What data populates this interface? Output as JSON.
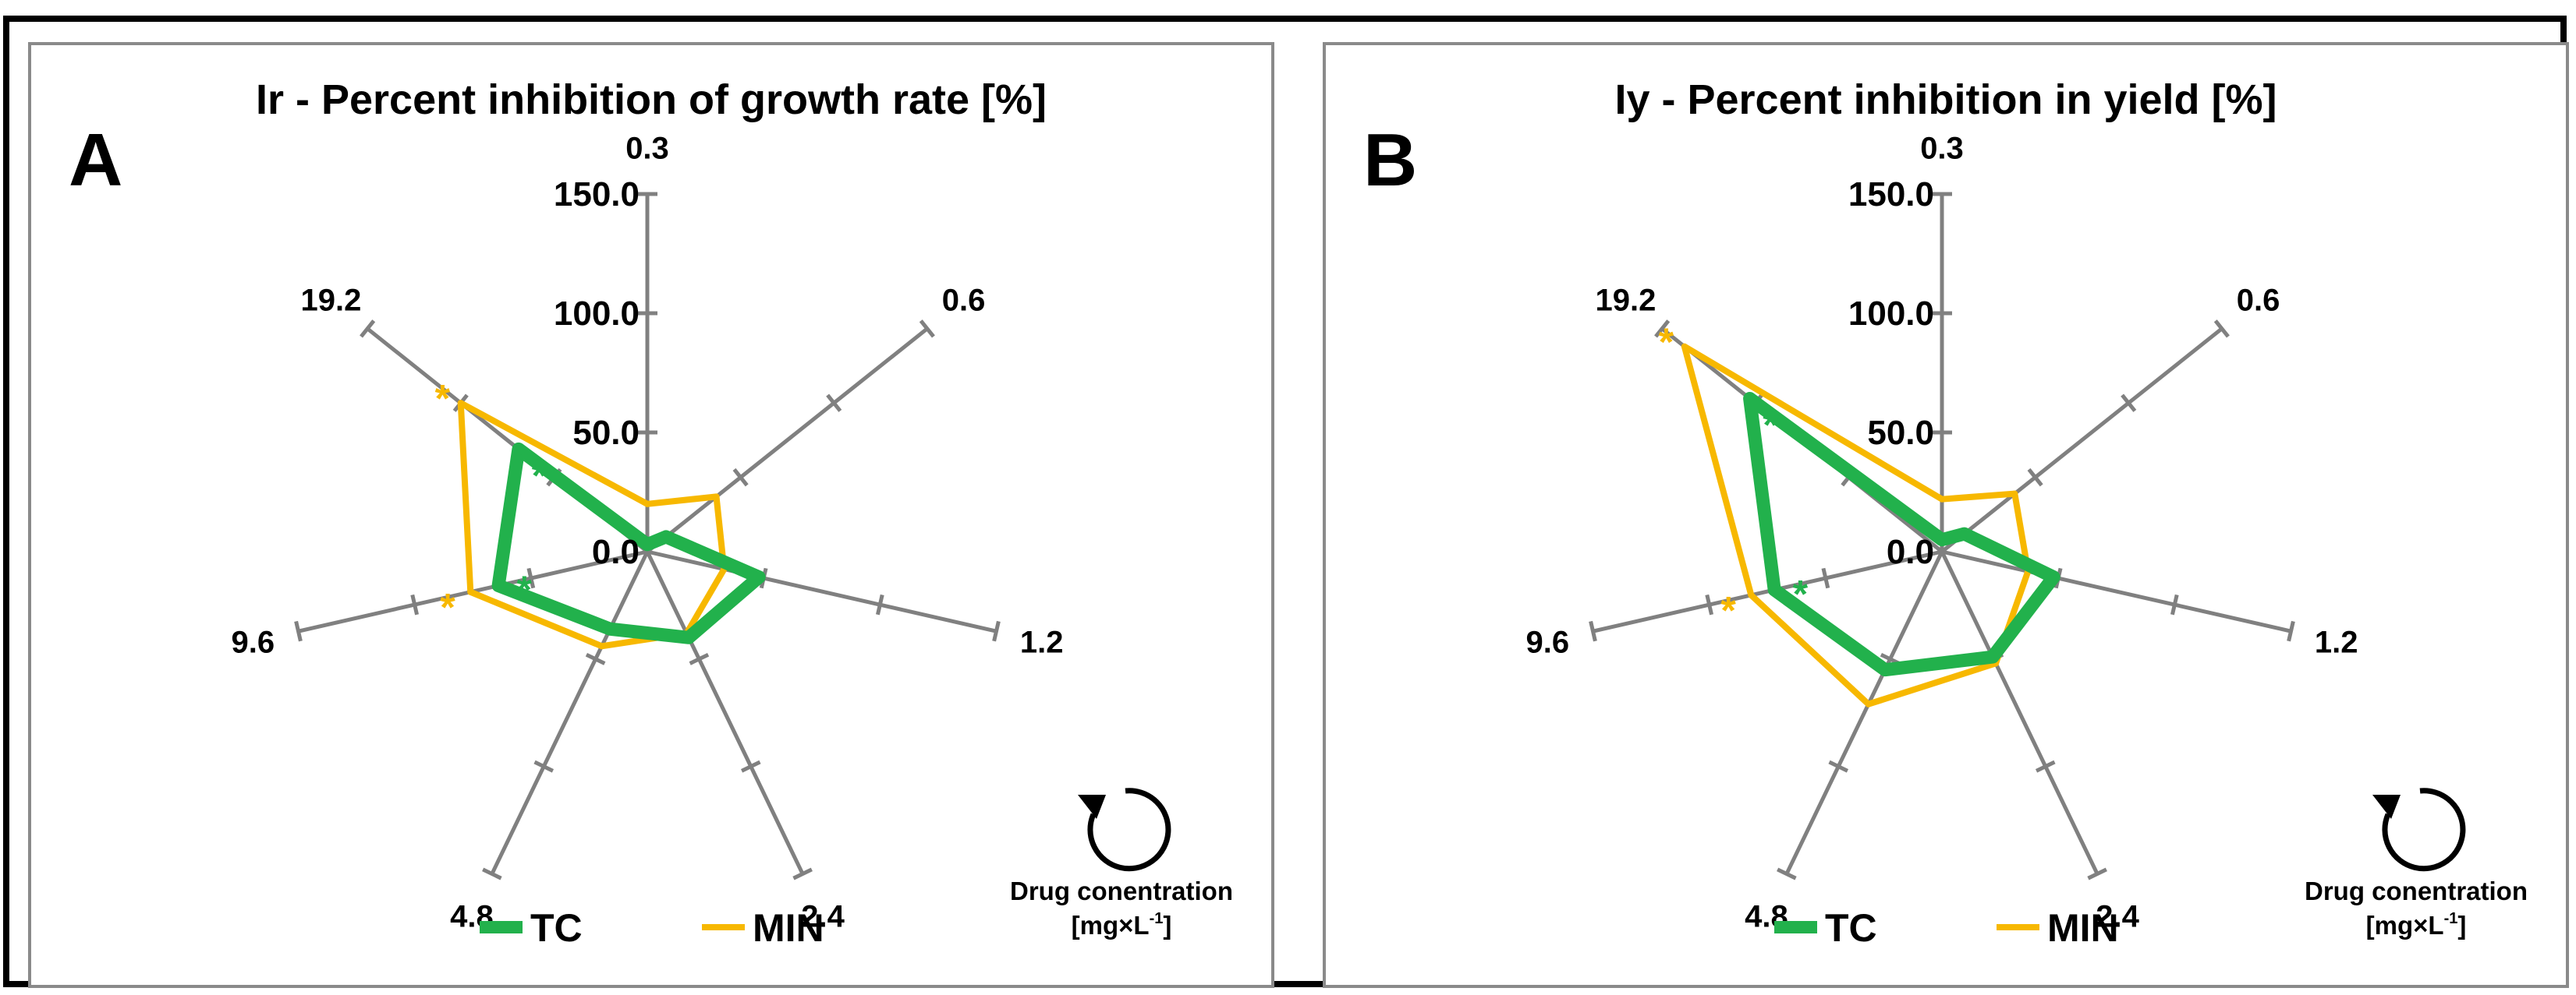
{
  "colors": {
    "tc": "#22b14c",
    "min": "#f7b800",
    "axis": "#808080",
    "text": "#000000"
  },
  "icons": {
    "rotation": "clockwise-rotation-icon"
  },
  "chart_data": [
    {
      "type": "radar",
      "panel": "A",
      "title": "Ir - Percent inhibition of growth rate [%]",
      "categories": [
        "0.3",
        "0.6",
        "1.2",
        "2.4",
        "4.8",
        "9.6",
        "19.2"
      ],
      "rlim": [
        0,
        150
      ],
      "rticks": [
        "0.0",
        "50.0",
        "100.0",
        "150.0"
      ],
      "series": [
        {
          "name": "TC",
          "values": [
            3,
            10,
            48,
            40,
            36,
            64,
            69
          ]
        },
        {
          "name": "MIN",
          "values": [
            20,
            37,
            33,
            38,
            44,
            76,
            100
          ]
        }
      ],
      "significance": [
        {
          "series": "MIN",
          "category": "19.2",
          "text": "*"
        },
        {
          "series": "TC",
          "category": "19.2",
          "text": "*"
        },
        {
          "series": "TC",
          "category": "9.6",
          "text": "*"
        },
        {
          "series": "MIN",
          "category": "9.6",
          "text": "*"
        }
      ],
      "legend": {
        "position": "bottom",
        "labels": [
          "TC",
          "MIN"
        ]
      },
      "note": {
        "line1": "Drug conentration",
        "line2_prefix": "[mg×L",
        "line2_sup": "-1",
        "line2_suffix": "]"
      }
    },
    {
      "type": "radar",
      "panel": "B",
      "title": "Iy - Percent inhibition in yield [%]",
      "categories": [
        "0.3",
        "0.6",
        "1.2",
        "2.4",
        "4.8",
        "9.6",
        "19.2"
      ],
      "rlim": [
        0,
        150
      ],
      "rticks": [
        "0.0",
        "50.0",
        "100.0",
        "150.0"
      ],
      "series": [
        {
          "name": "TC",
          "values": [
            5,
            12,
            48,
            49,
            55,
            72,
            103
          ]
        },
        {
          "name": "MIN",
          "values": [
            22,
            39,
            37,
            52,
            71,
            82,
            138
          ]
        }
      ],
      "significance": [
        {
          "series": "MIN",
          "category": "19.2",
          "text": "*"
        },
        {
          "series": "TC",
          "category": "19.2",
          "text": "*"
        },
        {
          "series": "TC",
          "category": "9.6",
          "text": "*"
        },
        {
          "series": "MIN",
          "category": "9.6",
          "text": "*"
        }
      ],
      "legend": {
        "position": "bottom",
        "labels": [
          "TC",
          "MIN"
        ]
      },
      "note": {
        "line1": "Drug conentration",
        "line2_prefix": "[mg×L",
        "line2_sup": "-1",
        "line2_suffix": "]"
      }
    }
  ]
}
